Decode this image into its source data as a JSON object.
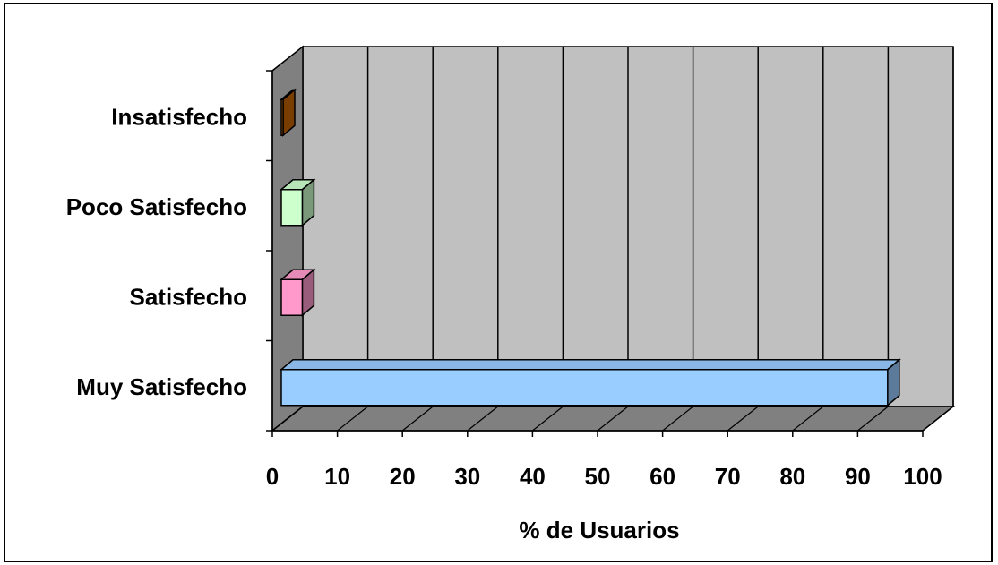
{
  "chart_data": {
    "type": "bar",
    "orientation": "horizontal",
    "style": "3d",
    "title": "",
    "xlabel": "% de Usuarios",
    "ylabel": "",
    "xlim": [
      0,
      100
    ],
    "xticks": [
      0,
      10,
      20,
      30,
      40,
      50,
      60,
      70,
      80,
      90,
      100
    ],
    "grid": true,
    "legend": "none",
    "categories": [
      "Muy Satisfecho",
      "Satisfecho",
      "Poco Satisfecho",
      "Insatisfecho"
    ],
    "values": [
      93.5,
      3.5,
      3.5,
      0.3
    ],
    "colors": {
      "bars": [
        "#99ccff",
        "#ff99cc",
        "#ccffcc",
        "#cc6600"
      ],
      "wall": "#c0c0c0",
      "side_wall": "#808080",
      "floor": "#808080"
    }
  }
}
